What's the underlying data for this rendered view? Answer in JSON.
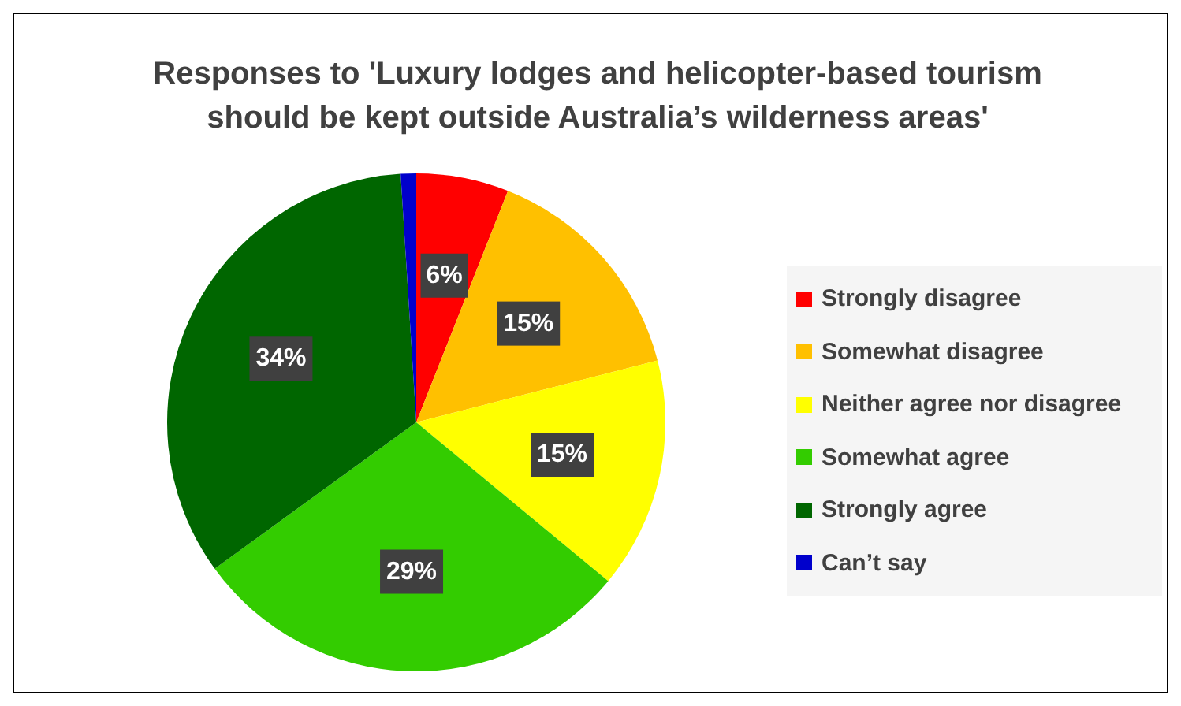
{
  "chart_data": {
    "type": "pie",
    "title": "Responses to 'Luxury lodges and helicopter-based tourism should be kept outside Australia’s wilderness areas'",
    "categories": [
      "Strongly disagree",
      "Somewhat disagree",
      "Neither agree nor disagree",
      "Somewhat agree",
      "Strongly agree",
      "Can’t say"
    ],
    "values": [
      6,
      15,
      15,
      29,
      34,
      1
    ],
    "colors": [
      "#ff0000",
      "#ffc000",
      "#ffff00",
      "#33cc00",
      "#006600",
      "#0000cc"
    ],
    "value_labels": [
      "6%",
      "15%",
      "15%",
      "29%",
      "34%",
      null
    ],
    "legend": "right"
  }
}
